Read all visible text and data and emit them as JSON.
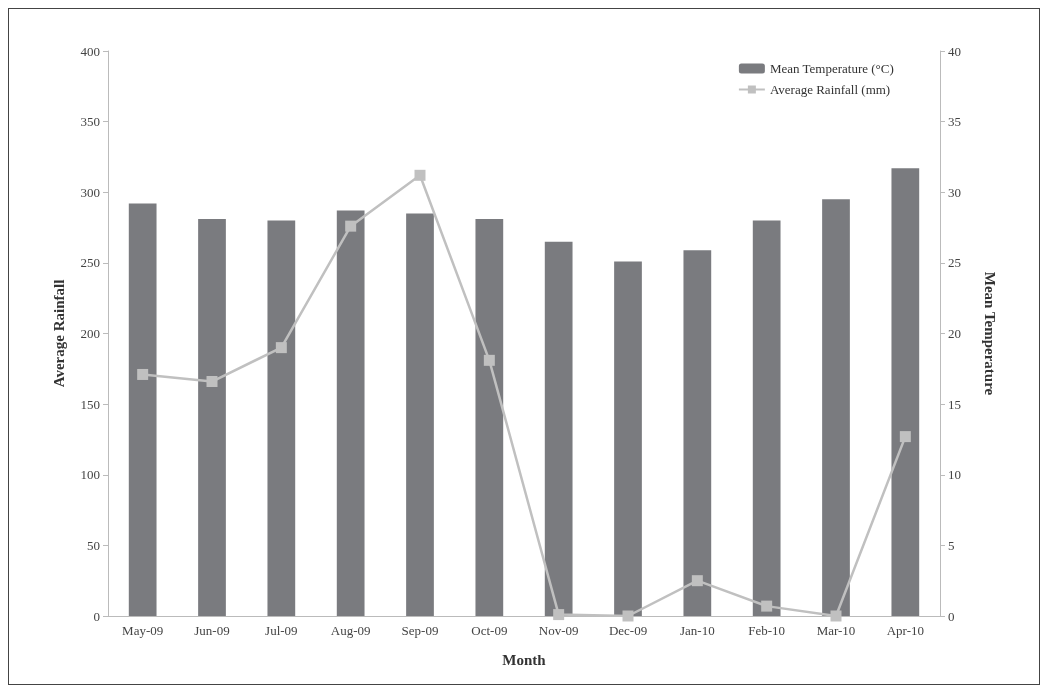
{
  "chart_data": {
    "type": "bar",
    "xlabel": "Month",
    "ylabel": "Average Rainfall",
    "y2label": "Mean Temperature",
    "categories": [
      "May-09",
      "Jun-09",
      "Jul-09",
      "Aug-09",
      "Sep-09",
      "Oct-09",
      "Nov-09",
      "Dec-09",
      "Jan-10",
      "Feb-10",
      "Mar-10",
      "Apr-10"
    ],
    "series": [
      {
        "name": "Mean Temperature (°C)",
        "axis": "y2",
        "color": "#7a7b7f",
        "values": [
          29.2,
          28.1,
          28.0,
          28.7,
          28.5,
          28.1,
          26.5,
          25.1,
          25.9,
          28.0,
          29.5,
          31.7
        ]
      },
      {
        "name": "Average Rainfall (mm)",
        "type": "line",
        "color": "#c0c0c0",
        "marker": "square",
        "values": [
          171,
          166,
          190,
          276,
          312,
          181,
          1,
          0,
          25,
          7,
          0,
          127
        ]
      }
    ],
    "ylim": [
      0,
      400
    ],
    "yticks": [
      0,
      50,
      100,
      150,
      200,
      250,
      300,
      350,
      400
    ],
    "y2lim": [
      0,
      40
    ],
    "y2ticks": [
      0,
      5,
      10,
      15,
      20,
      25,
      30,
      35,
      40
    ],
    "grid": false,
    "legend": "top right"
  }
}
